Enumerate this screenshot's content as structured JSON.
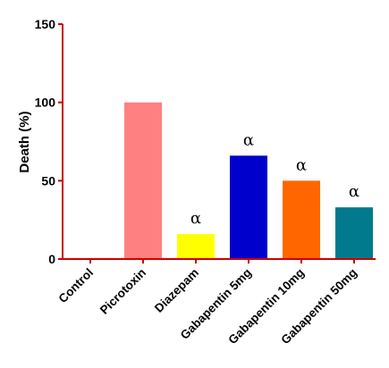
{
  "chart_data": {
    "type": "bar",
    "title": "",
    "xlabel": "",
    "ylabel": "Death (%)",
    "ylim": [
      0,
      150
    ],
    "yticks": [
      0,
      50,
      100,
      150
    ],
    "grid": false,
    "axis_color": "#cc0000",
    "categories": [
      "Control",
      "Picrotoxin",
      "Diazepam",
      "Gabapentin 5mg",
      "Gabapentin 10mg",
      "Gabapentin 50mg"
    ],
    "values": [
      0,
      100,
      16,
      66,
      50,
      33
    ],
    "colors": [
      "#ffffff",
      "#ff8080",
      "#ffff00",
      "#0000cc",
      "#ff6600",
      "#007a8c"
    ],
    "annotations": [
      "",
      "",
      "α",
      "α",
      "α",
      "α"
    ]
  }
}
